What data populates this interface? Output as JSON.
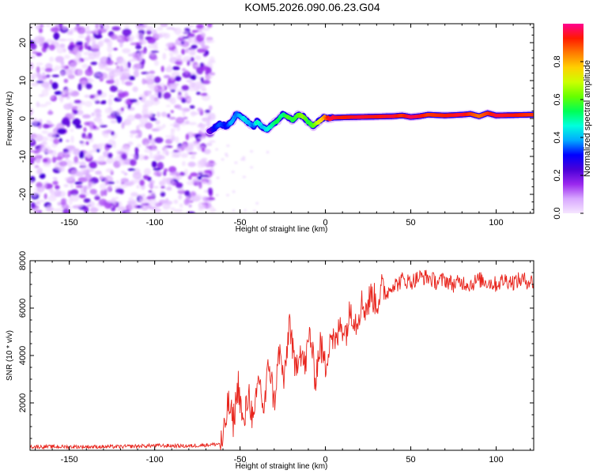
{
  "title": "KOM5.2026.090.06.23.G04",
  "chart_data": [
    {
      "type": "heatmap",
      "name": "spectrogram",
      "xlabel": "Height of straight line (km)",
      "ylabel": "Frequency (Hz)",
      "xlim": [
        -173,
        122
      ],
      "ylim": [
        -25,
        25
      ],
      "xticks": [
        -150,
        -100,
        -50,
        0,
        50,
        100
      ],
      "yticks": [
        -20,
        -10,
        0,
        10,
        20
      ],
      "colorbar": {
        "label": "Normalized spectral amplitude",
        "range": [
          0,
          1
        ],
        "ticks": [
          0.0,
          0.2,
          0.4,
          0.6,
          0.8
        ],
        "tick_labels": [
          "0.0",
          "0.2",
          "0.4",
          "0.6",
          "0.8"
        ],
        "colormap": [
          "#f6e6ff",
          "#d8a8ff",
          "#9a28ee",
          "#4a00d8",
          "#0000ff",
          "#00aaff",
          "#00ffdd",
          "#00ff55",
          "#66ff00",
          "#ccff00",
          "#ffd000",
          "#ff7a00",
          "#ff1a00",
          "#ff0090"
        ]
      },
      "noise_region": {
        "x_range": [
          -173,
          -68
        ],
        "y_range": [
          -25,
          25
        ]
      },
      "signal_track": {
        "x": [
          -68,
          -65,
          -62,
          -58,
          -55,
          -52,
          -48,
          -45,
          -42,
          -40,
          -37,
          -34,
          -31,
          -28,
          -25,
          -22,
          -19,
          -16,
          -13,
          -10,
          -7,
          -4,
          -1,
          2,
          5,
          10,
          20,
          30,
          40,
          45,
          50,
          55,
          60,
          70,
          80,
          85,
          90,
          95,
          100,
          110,
          122
        ],
        "frequency": [
          -3.5,
          -2.5,
          -1.5,
          -2.0,
          -1.0,
          1.2,
          0.0,
          -1.2,
          -2.0,
          -0.8,
          -2.2,
          -3.0,
          -1.5,
          -0.5,
          1.0,
          0.5,
          -0.5,
          1.0,
          0.5,
          -1.0,
          -2.0,
          -0.8,
          0.3,
          0.0,
          0.2,
          0.3,
          0.4,
          0.5,
          0.6,
          0.8,
          0.4,
          0.6,
          1.0,
          0.8,
          1.0,
          1.2,
          0.6,
          1.4,
          0.8,
          0.9,
          1.0
        ],
        "amplitude": [
          0.2,
          0.3,
          0.35,
          0.3,
          0.4,
          0.35,
          0.45,
          0.4,
          0.35,
          0.5,
          0.4,
          0.45,
          0.5,
          0.55,
          0.5,
          0.6,
          0.55,
          0.6,
          0.65,
          0.55,
          0.6,
          0.7,
          0.8,
          0.95,
          0.95,
          0.92,
          0.95,
          0.93,
          0.95,
          0.9,
          0.97,
          0.95,
          0.9,
          0.92,
          0.95,
          0.9,
          0.85,
          0.9,
          0.95,
          0.93,
          0.9
        ]
      }
    },
    {
      "type": "line",
      "name": "snr",
      "xlabel": "Height of straight line (km)",
      "ylabel": "SNR (10 * v/v)",
      "xlim": [
        -173,
        122
      ],
      "ylim": [
        0,
        8000
      ],
      "xticks": [
        -150,
        -100,
        -50,
        0,
        50,
        100
      ],
      "yticks": [
        2000,
        4000,
        6000,
        8000
      ],
      "color": "#e8241c",
      "series": [
        {
          "name": "SNR",
          "x": [
            -173,
            -150,
            -120,
            -100,
            -80,
            -65,
            -60,
            -57,
            -54,
            -51,
            -48,
            -45,
            -42,
            -39,
            -36,
            -33,
            -30,
            -27,
            -24,
            -21,
            -18,
            -15,
            -12,
            -9,
            -6,
            -3,
            0,
            3,
            6,
            9,
            12,
            15,
            18,
            21,
            24,
            27,
            30,
            33,
            36,
            39,
            42,
            45,
            50,
            55,
            60,
            65,
            70,
            75,
            80,
            85,
            90,
            95,
            100,
            105,
            110,
            115,
            122
          ],
          "values": [
            150,
            150,
            150,
            200,
            180,
            250,
            300,
            2000,
            1200,
            2800,
            900,
            2500,
            1000,
            3200,
            1600,
            3800,
            2000,
            4200,
            2800,
            5600,
            3300,
            4400,
            3500,
            5000,
            3000,
            4500,
            3500,
            5000,
            4400,
            5400,
            5000,
            6000,
            5400,
            6200,
            6000,
            6600,
            6200,
            6800,
            6600,
            7000,
            7000,
            7200,
            7100,
            7300,
            7300,
            7100,
            7200,
            7000,
            7100,
            7000,
            7200,
            7100,
            7000,
            7200,
            7100,
            7200,
            7100
          ]
        }
      ]
    }
  ]
}
